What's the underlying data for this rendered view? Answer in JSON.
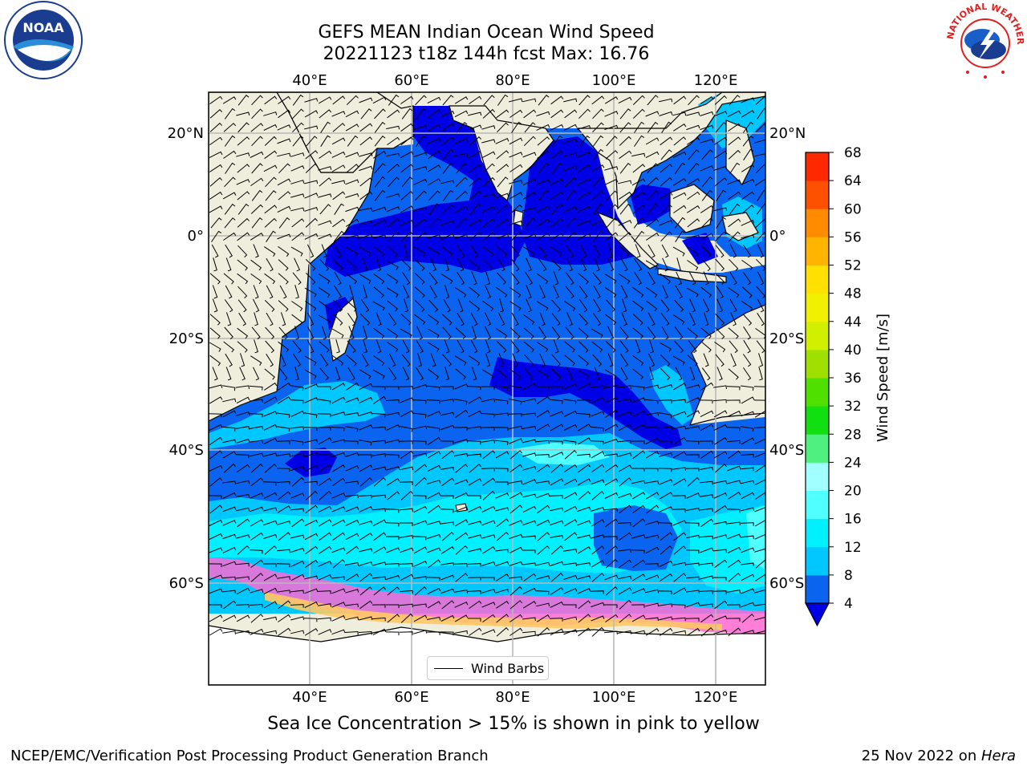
{
  "title": {
    "line1": "GEFS MEAN Indian Ocean Wind Speed",
    "line2": "20221123 t18z 144h fcst   Max: 16.76"
  },
  "map": {
    "lon_labels": [
      "40°E",
      "60°E",
      "80°E",
      "100°E",
      "120°E"
    ],
    "lat_labels": [
      "20°N",
      "0°",
      "20°S",
      "40°S",
      "60°S"
    ],
    "legend_label": "Wind Barbs"
  },
  "colorbar": {
    "label": "Wind Speed [m/s]",
    "ticks": [
      "4",
      "8",
      "12",
      "16",
      "20",
      "24",
      "28",
      "32",
      "36",
      "40",
      "44",
      "48",
      "52",
      "56",
      "60",
      "64",
      "68"
    ],
    "colors": [
      "#0a64f0",
      "#00c8ff",
      "#00f0ff",
      "#50ffff",
      "#a0ffff",
      "#50f080",
      "#10e010",
      "#50e000",
      "#a0e000",
      "#d0f000",
      "#f0f000",
      "#ffe000",
      "#ffb400",
      "#ff8c00",
      "#ff5000",
      "#ff2800"
    ],
    "under_color": "#0000e6"
  },
  "caption": "Sea Ice Concentration > 15% is shown in pink to yellow",
  "footer": {
    "left": "NCEP/EMC/Verification Post Processing Product Generation Branch",
    "right_date": "25 Nov 2022 on ",
    "right_host": "Hera"
  },
  "logos": {
    "noaa_text": "NOAA",
    "nws_text": "NATIONAL WEATHER SERVICE"
  }
}
